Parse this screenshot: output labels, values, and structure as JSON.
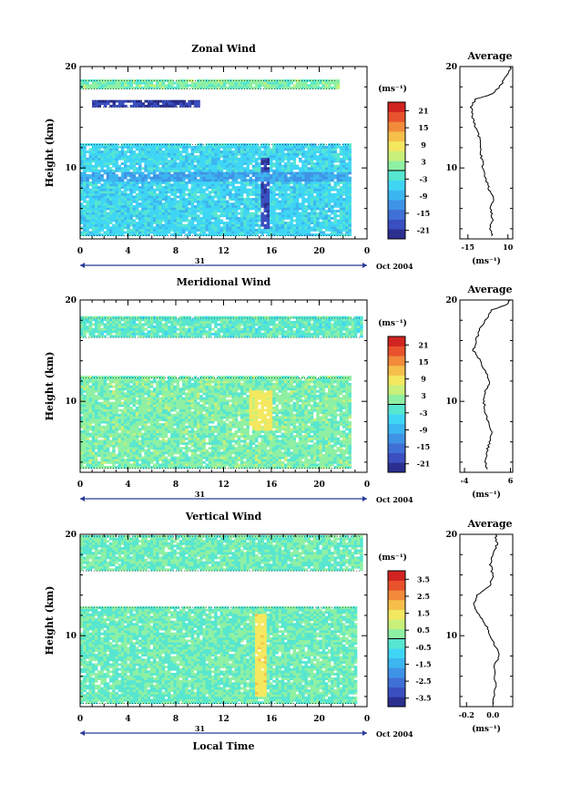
{
  "figure": {
    "xlabel": "Local Time",
    "date_label": "Oct 2004",
    "day_label": "31"
  },
  "colormap": [
    "#2b2f8f",
    "#3a4fc0",
    "#3f70d6",
    "#3f93e6",
    "#3cb6f0",
    "#3fd6f5",
    "#57e6d0",
    "#8ef0a3",
    "#c8f07a",
    "#f3e85f",
    "#f5bf4a",
    "#f28a3c",
    "#e8522c",
    "#d12420"
  ],
  "chart_data": [
    {
      "type": "heatmap",
      "title": "Zonal Wind",
      "ylabel": "Height (km)",
      "units": "(ms⁻¹)",
      "xlim": [
        0,
        24
      ],
      "ylim": [
        3,
        20
      ],
      "x_ticks": [
        "0",
        "4",
        "8",
        "12",
        "16",
        "20",
        "0"
      ],
      "y_ticks": [
        "10",
        "20"
      ],
      "colorbar_ticks": [
        "21",
        "15",
        "9",
        "3",
        "-3",
        "-9",
        "-15",
        "-21"
      ],
      "colorbar_range": [
        -24,
        24
      ],
      "data_bands": [
        {
          "y": [
            17.8,
            18.6
          ],
          "x": [
            0,
            21.5
          ],
          "value": 1
        },
        {
          "y": [
            16.0,
            16.6
          ],
          "x": [
            1.0,
            10.0
          ],
          "value": -20
        },
        {
          "y": [
            3.3,
            12.3
          ],
          "x": [
            0,
            22.5
          ],
          "value": -5
        }
      ],
      "features": [
        {
          "note": "strong negative core",
          "x": [
            15,
            15.8
          ],
          "y": [
            4,
            11
          ],
          "value": -20
        },
        {
          "note": "easterly jet band",
          "x": [
            0,
            24
          ],
          "y": [
            8.5,
            9.5
          ],
          "value": -10
        }
      ]
    },
    {
      "type": "heatmap",
      "title": "Meridional Wind",
      "ylabel": "Height (km)",
      "units": "(ms⁻¹)",
      "xlim": [
        0,
        24
      ],
      "ylim": [
        3,
        20
      ],
      "x_ticks": [
        "0",
        "4",
        "8",
        "12",
        "16",
        "20",
        "0"
      ],
      "y_ticks": [
        "10",
        "20"
      ],
      "colorbar_ticks": [
        "21",
        "15",
        "9",
        "3",
        "-3",
        "-9",
        "-15",
        "-21"
      ],
      "colorbar_range": [
        -24,
        24
      ],
      "data_bands": [
        {
          "y": [
            16.3,
            18.2
          ],
          "x": [
            0,
            23.5
          ],
          "value": -1
        },
        {
          "y": [
            3.4,
            12.3
          ],
          "x": [
            0,
            22.5
          ],
          "value": 1
        }
      ],
      "features": [
        {
          "note": "positive maximum",
          "x": [
            14,
            16
          ],
          "y": [
            7,
            11
          ],
          "value": 8
        }
      ]
    },
    {
      "type": "heatmap",
      "title": "Vertical Wind",
      "ylabel": "Height (km)",
      "units": "(ms⁻¹)",
      "xlim": [
        0,
        24
      ],
      "ylim": [
        3,
        20
      ],
      "x_ticks": [
        "0",
        "4",
        "8",
        "12",
        "16",
        "20",
        "0"
      ],
      "y_ticks": [
        "10",
        "20"
      ],
      "colorbar_ticks": [
        "3.5",
        "2.5",
        "1.5",
        "0.5",
        "-0.5",
        "-1.5",
        "-2.5",
        "-3.5"
      ],
      "colorbar_range": [
        -4,
        4
      ],
      "data_bands": [
        {
          "y": [
            16.4,
            19.8
          ],
          "x": [
            0,
            23.5
          ],
          "value": 0
        },
        {
          "y": [
            3.3,
            12.8
          ],
          "x": [
            0,
            23.0
          ],
          "value": 0
        }
      ],
      "features": [
        {
          "note": "updraft streak",
          "x": [
            14.5,
            15.5
          ],
          "y": [
            4,
            12
          ],
          "value": 1.5
        }
      ]
    },
    {
      "type": "line",
      "title": "Average",
      "xlabel": "(ms⁻¹)",
      "xlim": [
        -20,
        13
      ],
      "ylim": [
        3,
        20
      ],
      "x_ticks": [
        "-15",
        "10"
      ],
      "y_ticks": [
        "10",
        "20"
      ],
      "points": [
        [
          0,
          3.3
        ],
        [
          -1,
          4
        ],
        [
          0.5,
          5
        ],
        [
          -1,
          6
        ],
        [
          1,
          7
        ],
        [
          -2,
          8
        ],
        [
          -4,
          9
        ],
        [
          -5.5,
          10
        ],
        [
          -6.5,
          11
        ],
        [
          -7,
          12
        ],
        [
          -8,
          13
        ],
        [
          -10,
          14
        ],
        [
          -12,
          15
        ],
        [
          -13,
          16
        ],
        [
          -10,
          16.8
        ],
        [
          0,
          17.3
        ],
        [
          5,
          18
        ],
        [
          8,
          18.8
        ],
        [
          11,
          19.5
        ],
        [
          12,
          20
        ]
      ]
    },
    {
      "type": "line",
      "title": "Average",
      "xlabel": "(ms⁻¹)",
      "xlim": [
        -5,
        6.5
      ],
      "ylim": [
        3,
        20
      ],
      "x_ticks": [
        "-4",
        "6"
      ],
      "y_ticks": [
        "10",
        "20"
      ],
      "points": [
        [
          1,
          3.3
        ],
        [
          0.5,
          4
        ],
        [
          0.8,
          5
        ],
        [
          1.5,
          6
        ],
        [
          2,
          7
        ],
        [
          1.2,
          8
        ],
        [
          0.5,
          9
        ],
        [
          0.2,
          10
        ],
        [
          0.6,
          11
        ],
        [
          1.5,
          12
        ],
        [
          0.5,
          13
        ],
        [
          -0.5,
          14
        ],
        [
          -2,
          15
        ],
        [
          -1.5,
          16
        ],
        [
          -0.8,
          17
        ],
        [
          0.5,
          18
        ],
        [
          2,
          19
        ],
        [
          5,
          19.5
        ],
        [
          6,
          20
        ]
      ]
    },
    {
      "type": "line",
      "title": "Average",
      "xlabel": "(ms⁻¹)",
      "xlim": [
        -0.25,
        0.15
      ],
      "ylim": [
        3,
        20
      ],
      "x_ticks": [
        "-0.2",
        "0.0"
      ],
      "y_ticks": [
        "10",
        "20"
      ],
      "points": [
        [
          0.0,
          3.3
        ],
        [
          0.02,
          5
        ],
        [
          0.01,
          7
        ],
        [
          0.05,
          8
        ],
        [
          0.02,
          9
        ],
        [
          -0.02,
          10
        ],
        [
          -0.05,
          11
        ],
        [
          -0.1,
          12
        ],
        [
          -0.15,
          13
        ],
        [
          -0.12,
          14
        ],
        [
          -0.02,
          15
        ],
        [
          0.0,
          16
        ],
        [
          -0.02,
          17
        ],
        [
          0.0,
          18
        ],
        [
          0.03,
          19
        ],
        [
          0.02,
          20
        ]
      ]
    }
  ]
}
